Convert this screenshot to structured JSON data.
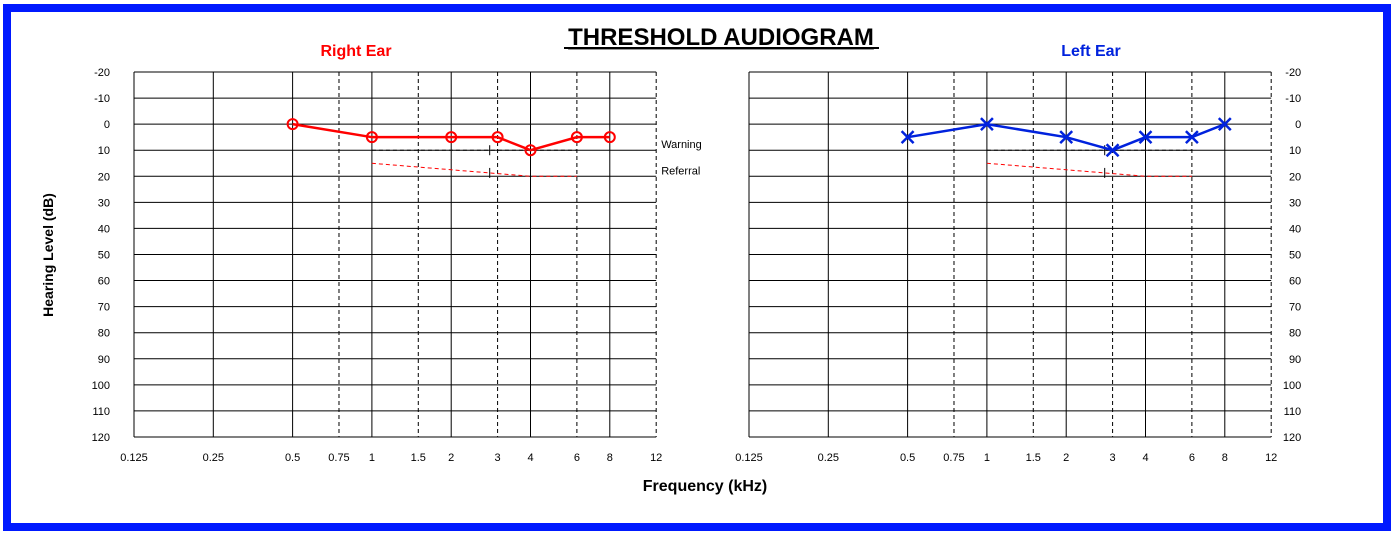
{
  "title": "THRESHOLD AUDIOGRAM",
  "y_axis_label": "Hearing Level (dB)",
  "x_axis_label": "Frequency (kHz)",
  "colors": {
    "frame": "#0019FF",
    "right": "#FF0000",
    "left": "#0022DD",
    "referral": "#FF0000",
    "warning": "#000000"
  },
  "chart_data": [
    {
      "type": "line",
      "title": "Right Ear",
      "xlabel": "Frequency (kHz)",
      "ylabel": "Hearing Level (dB)",
      "x_ticks": [
        0.125,
        0.25,
        0.5,
        0.75,
        1,
        1.5,
        2,
        3,
        4,
        6,
        8,
        12
      ],
      "x_tick_labels": [
        "0.125",
        "0.25",
        "0.5",
        "0.75",
        "1",
        "1.5",
        "2",
        "3",
        "4",
        "6",
        "8",
        "12"
      ],
      "y_ticks": [
        -20,
        -10,
        0,
        10,
        20,
        30,
        40,
        50,
        60,
        70,
        80,
        90,
        100,
        110,
        120
      ],
      "y_tick_labels": [
        "-20",
        "-10",
        "0",
        "10",
        "20",
        "30",
        "40",
        "50",
        "60",
        "70",
        "80",
        "90",
        "100",
        "110",
        "120"
      ],
      "xlim": [
        0.125,
        12
      ],
      "ylim": [
        -20,
        120
      ],
      "x_scale": "log",
      "y_inverted": true,
      "grid": true,
      "marker": "circle",
      "series": [
        {
          "name": "Right Ear",
          "x": [
            0.5,
            1,
            2,
            3,
            4,
            6,
            8
          ],
          "y": [
            0,
            5,
            5,
            5,
            10,
            5,
            5
          ]
        }
      ],
      "reference_lines": [
        {
          "name": "Warning",
          "label": "Warning",
          "x": [
            1,
            6
          ],
          "y": [
            10,
            10
          ],
          "tick_x": 2.8
        },
        {
          "name": "Referral",
          "label": "Referral",
          "x": [
            1,
            4,
            6
          ],
          "y": [
            15,
            20,
            20
          ],
          "tick_x": 2.8
        }
      ]
    },
    {
      "type": "line",
      "title": "Left Ear",
      "xlabel": "Frequency (kHz)",
      "ylabel": "Hearing Level (dB)",
      "x_ticks": [
        0.125,
        0.25,
        0.5,
        0.75,
        1,
        1.5,
        2,
        3,
        4,
        6,
        8,
        12
      ],
      "x_tick_labels": [
        "0.125",
        "0.25",
        "0.5",
        "0.75",
        "1",
        "1.5",
        "2",
        "3",
        "4",
        "6",
        "8",
        "12"
      ],
      "y_ticks": [
        -20,
        -10,
        0,
        10,
        20,
        30,
        40,
        50,
        60,
        70,
        80,
        90,
        100,
        110,
        120
      ],
      "y_tick_labels": [
        "-20",
        "-10",
        "0",
        "10",
        "20",
        "30",
        "40",
        "50",
        "60",
        "70",
        "80",
        "90",
        "100",
        "110",
        "120"
      ],
      "xlim": [
        0.125,
        12
      ],
      "ylim": [
        -20,
        120
      ],
      "x_scale": "log",
      "y_inverted": true,
      "grid": true,
      "marker": "x",
      "series": [
        {
          "name": "Left Ear",
          "x": [
            0.5,
            1,
            2,
            3,
            4,
            6,
            8
          ],
          "y": [
            5,
            0,
            5,
            10,
            5,
            5,
            0
          ]
        }
      ],
      "reference_lines": [
        {
          "name": "Warning",
          "x": [
            1,
            6
          ],
          "y": [
            10,
            10
          ],
          "tick_x": 2.8
        },
        {
          "name": "Referral",
          "x": [
            1,
            4,
            6
          ],
          "y": [
            15,
            20,
            20
          ],
          "tick_x": 2.8
        }
      ]
    }
  ]
}
